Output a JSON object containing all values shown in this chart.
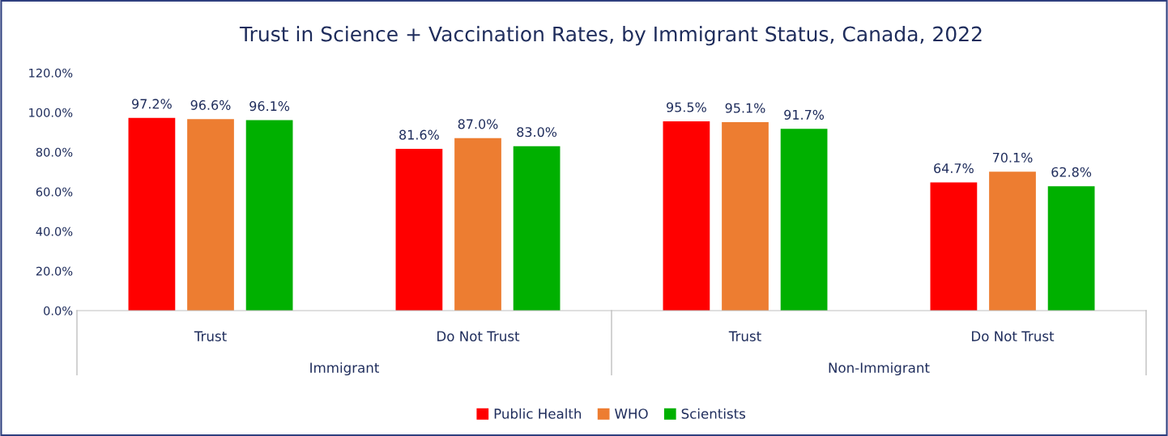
{
  "chart_data": {
    "type": "bar",
    "title": "Trust in Science + Vaccination Rates, by Immigrant Status, Canada, 2022",
    "categories": [
      "Trust",
      "Do Not Trust",
      "Trust",
      "Do Not Trust"
    ],
    "annotations": [
      "Immigrant",
      "Non-Immigrant"
    ],
    "series": [
      {
        "name": "Public Health",
        "color": "#ff0000",
        "values": [
          97.2,
          81.6,
          95.5,
          64.7
        ],
        "value_labels": [
          "97.2%",
          "81.6%",
          "95.5%",
          "64.7%"
        ]
      },
      {
        "name": "WHO",
        "color": "#ed7d31",
        "values": [
          96.6,
          87.0,
          95.1,
          70.1
        ],
        "value_labels": [
          "96.6%",
          "87.0%",
          "95.1%",
          "70.1%"
        ]
      },
      {
        "name": "Scientists",
        "color": "#00b000",
        "values": [
          96.1,
          83.0,
          91.7,
          62.8
        ],
        "value_labels": [
          "96.1%",
          "83.0%",
          "91.7%",
          "62.8%"
        ]
      }
    ],
    "ylim": [
      0,
      120
    ],
    "yticks": [
      {
        "value": 0,
        "label": "0.0%"
      },
      {
        "value": 20,
        "label": "20.0%"
      },
      {
        "value": 40,
        "label": "40.0%"
      },
      {
        "value": 60,
        "label": "60.0%"
      },
      {
        "value": 80,
        "label": "80.0%"
      },
      {
        "value": 100,
        "label": "100.0%"
      },
      {
        "value": 120,
        "label": "120.0%"
      }
    ],
    "grid": false,
    "legend": "bottom"
  }
}
